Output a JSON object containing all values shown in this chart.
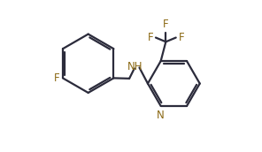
{
  "background_color": "#ffffff",
  "line_color": "#2b2b3b",
  "label_color": "#8B6914",
  "bond_width": 1.6,
  "font_size": 8.5,
  "figsize": [
    2.96,
    1.72
  ],
  "dpi": 100,
  "xlim": [
    0.0,
    1.0
  ],
  "ylim": [
    0.05,
    0.95
  ]
}
